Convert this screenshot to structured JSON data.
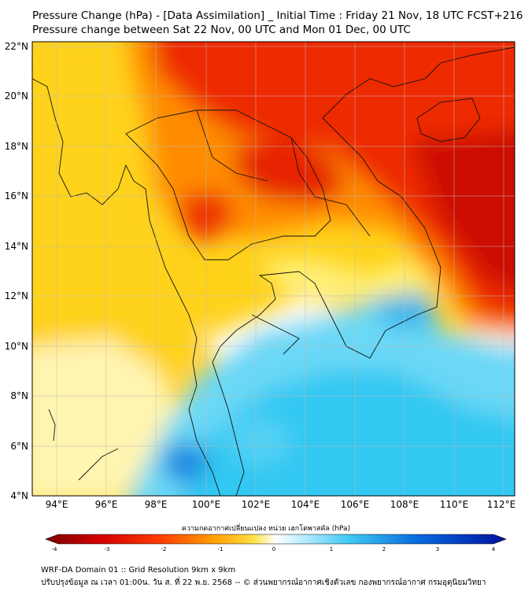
{
  "header": {
    "title": "Pressure Change (hPa) - [Data Assimilation] _ Initial Time : Friday 21 Nov, 18 UTC FCST+216",
    "subtitle": "Pressure change between Sat 22 Nov, 00 UTC and Mon 01 Dec, 00 UTC"
  },
  "map": {
    "lat_labels": [
      "22°N",
      "20°N",
      "18°N",
      "16°N",
      "14°N",
      "12°N",
      "10°N",
      "8°N",
      "6°N",
      "4°N"
    ],
    "lon_labels": [
      "94°E",
      "96°E",
      "98°E",
      "100°E",
      "102°E",
      "104°E",
      "106°E",
      "108°E",
      "110°E",
      "112°E"
    ],
    "lat_range": [
      4,
      22.3
    ],
    "lon_range": [
      93.2,
      112.5
    ],
    "field_regions": [
      {
        "category": "strong fall",
        "color": "#e01000"
      },
      {
        "category": "moderate fall",
        "color": "#ff7a00"
      },
      {
        "category": "slight fall",
        "color": "#ffd21a"
      },
      {
        "category": "near zero",
        "color": "#ffffff"
      },
      {
        "category": "rise",
        "color": "#33c9f2"
      },
      {
        "category": "strong rise",
        "color": "#1a86e0"
      }
    ]
  },
  "colorbar": {
    "label": "ความกดอากาศเปลี่ยนแปลง หน่วย เฮกโตพาสคัล (hPa)",
    "ticks": [
      "-4",
      "-3",
      "-2",
      "-1",
      "0",
      "1",
      "2",
      "3",
      "4"
    ],
    "range": [
      -4.3,
      4.3
    ]
  },
  "footer": {
    "line1": "WRF-DA Domain 01 :: Grid Resolution 9km x 9km",
    "line2": "ปรับปรุงข้อมูล ณ เวลา 01:00น. วัน ส. ที่ 22 พ.ย. 2568 -- © ส่วนพยากรณ์อากาศเชิงตัวเลข กองพยากรณ์อากาศ กรมอุตุนิยมวิทยา"
  }
}
